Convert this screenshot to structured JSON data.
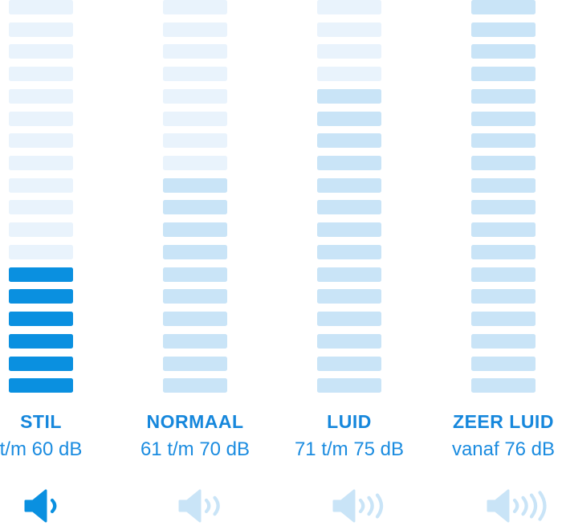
{
  "chart_data": {
    "type": "bar",
    "title": "",
    "categories": [
      "STIL",
      "NORMAAL",
      "LUID",
      "ZEER LUID"
    ],
    "ranges": [
      "t/m 60 dB",
      "61 t/m 70 dB",
      "71 t/m 75 dB",
      "vanaf 76 dB"
    ],
    "series": [
      {
        "name": "highlighted_segments",
        "values": [
          6,
          10,
          14,
          18
        ]
      }
    ],
    "segments_per_column": 18,
    "active_category": "STIL",
    "legend_position": "none",
    "grid": false
  },
  "columns": [
    {
      "label": "STIL",
      "range": "t/m 60 dB",
      "segments_total": 18,
      "segments_filled": 6,
      "fill_style": "solid",
      "speaker_waves": 1,
      "icon": "speaker-1-wave-icon"
    },
    {
      "label": "NORMAAL",
      "range": "61 t/m 70 dB",
      "segments_total": 18,
      "segments_filled": 10,
      "fill_style": "light",
      "speaker_waves": 2,
      "icon": "speaker-2-waves-icon"
    },
    {
      "label": "LUID",
      "range": "71 t/m 75 dB",
      "segments_total": 18,
      "segments_filled": 14,
      "fill_style": "light",
      "speaker_waves": 3,
      "icon": "speaker-3-waves-icon"
    },
    {
      "label": "ZEER LUID",
      "range": "vanaf 76 dB",
      "segments_total": 18,
      "segments_filled": 18,
      "fill_style": "light",
      "speaker_waves": 4,
      "icon": "speaker-4-waves-icon"
    }
  ],
  "colors": {
    "bar_inactive": "#e9f3fc",
    "bar_light": "#c9e4f7",
    "bar_solid": "#0a90e0",
    "text_blue": "#1687dc",
    "background": "#ffffff"
  }
}
